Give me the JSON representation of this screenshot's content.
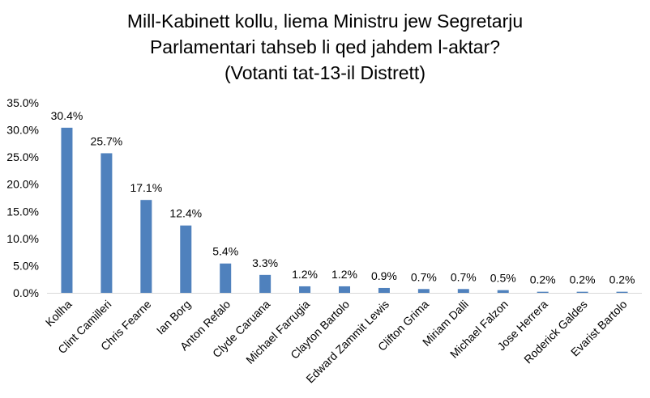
{
  "chart_data": {
    "type": "bar",
    "title_lines": [
      "Mill-Kabinett kollu, liema Ministru jew Segretarju",
      "Parlamentari tahseb li qed jahdem l-aktar?",
      "(Votanti tat-13-il Distrett)"
    ],
    "categories": [
      "Kollha",
      "Clint Camilleri",
      "Chris Fearne",
      "Ian Borg",
      "Anton Refalo",
      "Clyde Caruana",
      "Michael Farrugia",
      "Clayton Bartolo",
      "Edward Zammit Lewis",
      "Clifton Grima",
      "Miriam Dalli",
      "Michael Falzon",
      "Jose Herrera",
      "Roderick Galdes",
      "Evarist Bartolo"
    ],
    "values": [
      30.4,
      25.7,
      17.1,
      12.4,
      5.4,
      3.3,
      1.2,
      1.2,
      0.9,
      0.7,
      0.7,
      0.5,
      0.2,
      0.2,
      0.2
    ],
    "data_labels": [
      "30.4%",
      "25.7%",
      "17.1%",
      "12.4%",
      "5.4%",
      "3.3%",
      "1.2%",
      "1.2%",
      "0.9%",
      "0.7%",
      "0.7%",
      "0.5%",
      "0.2%",
      "0.2%",
      "0.2%"
    ],
    "ylim": [
      0,
      35
    ],
    "yticks": [
      "0.0%",
      "5.0%",
      "10.0%",
      "15.0%",
      "20.0%",
      "25.0%",
      "30.0%",
      "35.0%"
    ],
    "xlabel": "",
    "ylabel": "",
    "grid": false,
    "legend": "none",
    "bar_color": "#4f81bd",
    "axis_color": "#d9d9d9"
  }
}
